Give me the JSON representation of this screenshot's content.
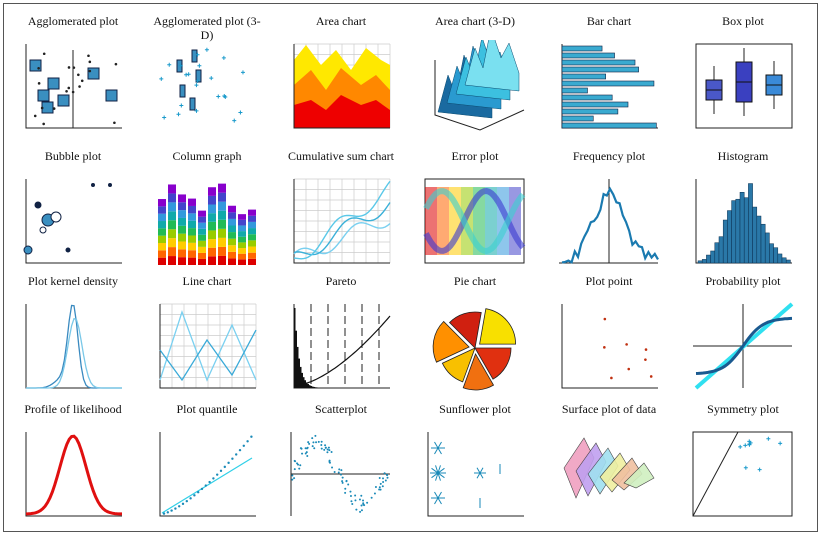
{
  "items": [
    {
      "label": "Agglomerated plot"
    },
    {
      "label": "Agglomerated plot (3-D)"
    },
    {
      "label": "Area chart"
    },
    {
      "label": "Area chart (3-D)"
    },
    {
      "label": "Bar chart"
    },
    {
      "label": "Box plot"
    },
    {
      "label": "Bubble plot"
    },
    {
      "label": "Column graph"
    },
    {
      "label": "Cumulative sum chart"
    },
    {
      "label": "Error plot"
    },
    {
      "label": "Frequency plot"
    },
    {
      "label": "Histogram"
    },
    {
      "label": "Plot kernel density"
    },
    {
      "label": "Line chart"
    },
    {
      "label": "Pareto"
    },
    {
      "label": "Pie chart"
    },
    {
      "label": "Plot point"
    },
    {
      "label": "Probability plot"
    },
    {
      "label": "Profile of likelihood"
    },
    {
      "label": "Plot quantile"
    },
    {
      "label": "Scatterplot"
    },
    {
      "label": "Sunflower plot"
    },
    {
      "label": "Surface plot of data"
    },
    {
      "label": "Symmetry plot"
    }
  ]
}
